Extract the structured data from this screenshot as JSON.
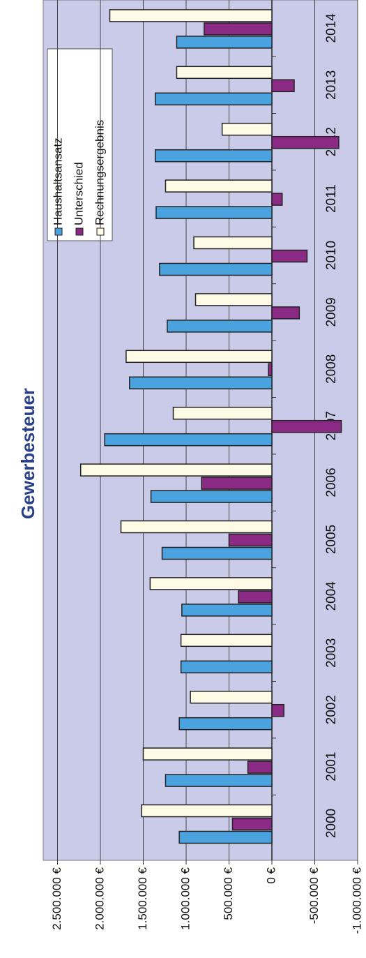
{
  "chart_data": {
    "type": "bar",
    "title": "Gewerbesteuer",
    "categories": [
      "2000",
      "2001",
      "2002",
      "2003",
      "2004",
      "2005",
      "2006",
      "2007",
      "2008",
      "2009",
      "2010",
      "2011",
      "2012",
      "2013",
      "2014"
    ],
    "series": [
      {
        "name": "Haushaltsansatz",
        "color": "#4aa3df",
        "values": [
          1080000,
          1240000,
          1080000,
          1060000,
          1050000,
          1280000,
          1410000,
          1950000,
          1660000,
          1220000,
          1310000,
          1350000,
          1360000,
          1360000,
          1110000
        ]
      },
      {
        "name": "Unterschied",
        "color": "#8b2a84",
        "values": [
          460000,
          280000,
          -140000,
          0,
          390000,
          500000,
          820000,
          -810000,
          40000,
          -320000,
          -410000,
          -120000,
          -780000,
          -260000,
          790000
        ]
      },
      {
        "name": "Rechnungsergebnis",
        "color": "#fdfbe6",
        "values": [
          1520000,
          1500000,
          950000,
          1060000,
          1420000,
          1760000,
          2230000,
          1150000,
          1700000,
          890000,
          910000,
          1240000,
          580000,
          1110000,
          1890000
        ]
      }
    ],
    "ylim": [
      -1000000,
      2500000
    ],
    "yticks": [
      {
        "value": -1000000,
        "label": "-1.000.000 €"
      },
      {
        "value": -500000,
        "label": "-500.000 €"
      },
      {
        "value": 0,
        "label": "0 €"
      },
      {
        "value": 500000,
        "label": "500.000 €"
      },
      {
        "value": 1000000,
        "label": "1.000.000 €"
      },
      {
        "value": 1500000,
        "label": "1.500.000 €"
      },
      {
        "value": 2000000,
        "label": "2.000.000 €"
      },
      {
        "value": 2500000,
        "label": "2.500.000 €"
      }
    ],
    "grid": true,
    "legend": "upper right"
  }
}
